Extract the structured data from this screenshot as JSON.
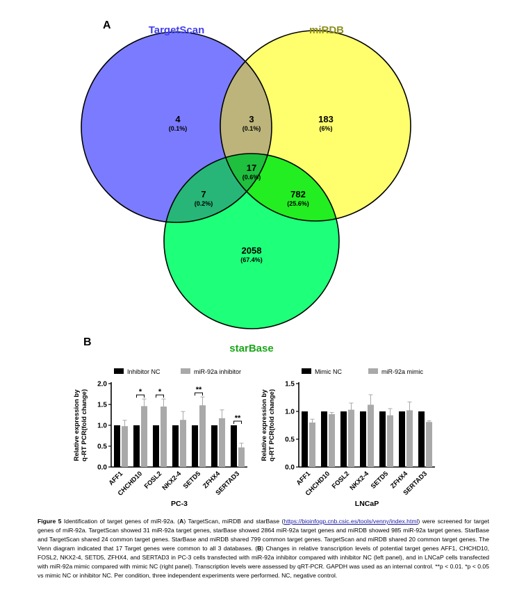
{
  "panel_a": {
    "label": "A",
    "sets": [
      {
        "name": "TargetScan",
        "color": "#4040f0",
        "fill": "#7b7bff"
      },
      {
        "name": "miRDB",
        "color": "#8f8f1e",
        "fill": "#ffff6e"
      },
      {
        "name": "starBase",
        "color": "#1aa61a",
        "fill": "#1eff7a"
      }
    ],
    "regions": [
      {
        "id": "ts_only",
        "count": "4",
        "pct": "(0.1%)"
      },
      {
        "id": "ts_mirdb",
        "count": "3",
        "pct": "(0.1%)"
      },
      {
        "id": "mirdb_only",
        "count": "183",
        "pct": "(6%)"
      },
      {
        "id": "all",
        "count": "17",
        "pct": "(0.6%)"
      },
      {
        "id": "ts_sb",
        "count": "7",
        "pct": "(0.2%)"
      },
      {
        "id": "mirdb_sb",
        "count": "782",
        "pct": "(25.6%)"
      },
      {
        "id": "sb_only",
        "count": "2058",
        "pct": "(67.4%)"
      }
    ]
  },
  "panel_b": {
    "label": "B",
    "chart_data": [
      {
        "type": "bar",
        "xlabel": "PC-3",
        "ylabel": [
          "Relative expression by",
          "q-RT PCR(fold change)"
        ],
        "ylim": [
          0,
          2.0
        ],
        "yticks": [
          "0.0",
          "0.5",
          "1.0",
          "1.5",
          "2.0"
        ],
        "categories": [
          "AFF1",
          "CHCHD10",
          "FOSL2",
          "NKX2-4",
          "SETD5",
          "ZFHX4",
          "SERTAD3"
        ],
        "series": [
          {
            "name": "Inhibitor NC",
            "color": "#000000",
            "values": [
              1.0,
              1.0,
              1.0,
              1.0,
              1.0,
              1.0,
              1.0
            ],
            "errors": [
              0,
              0,
              0,
              0,
              0,
              0,
              0
            ]
          },
          {
            "name": "miR-92a inhibitor",
            "color": "#a9a9a9",
            "values": [
              0.98,
              1.46,
              1.45,
              1.13,
              1.48,
              1.17,
              0.47
            ],
            "errors": [
              0.14,
              0.17,
              0.18,
              0.2,
              0.2,
              0.2,
              0.1
            ]
          }
        ],
        "significance": [
          {
            "category": "CHCHD10",
            "label": "*"
          },
          {
            "category": "FOSL2",
            "label": "*"
          },
          {
            "category": "SETD5",
            "label": "**"
          },
          {
            "category": "SERTAD3",
            "label": "**"
          }
        ],
        "legend": "top"
      },
      {
        "type": "bar",
        "xlabel": "LNCaP",
        "ylabel": [
          "Relative expression by",
          "q-RT PCR(fold change)"
        ],
        "ylim": [
          0,
          1.5
        ],
        "yticks": [
          "0.0",
          "0.5",
          "1.0",
          "1.5"
        ],
        "categories": [
          "AFF1",
          "CHCHD10",
          "FOSL2",
          "NKX2-4",
          "SETD5",
          "ZFHX4",
          "SERTAD3"
        ],
        "series": [
          {
            "name": "Mimic NC",
            "color": "#000000",
            "values": [
              1.0,
              1.0,
              1.0,
              1.0,
              1.0,
              1.0,
              1.0
            ],
            "errors": [
              0,
              0,
              0,
              0,
              0,
              0,
              0
            ]
          },
          {
            "name": "miR-92a mimic",
            "color": "#a9a9a9",
            "values": [
              0.8,
              0.95,
              1.03,
              1.12,
              0.93,
              1.02,
              0.81
            ],
            "errors": [
              0.06,
              0.03,
              0.12,
              0.18,
              0.12,
              0.15,
              0.02
            ]
          }
        ],
        "significance": [],
        "legend": "top"
      }
    ]
  },
  "caption": {
    "title": "Figure 5",
    "t1": " Identification of target genes of miR-92a. (",
    "a": "A",
    "t2": ") TargetScan, miRDB and starBase (",
    "link": "https://bioinfogp.cnb.csic.es/tools/venny/index.html",
    "t3": ") were screened for target genes of miR-92a. TargetScan showed 31 miR-92a target genes, starBase showed 2864 miR-92a target genes and miRDB showed 985 miR-92a target genes. StarBase and TargetScan shared 24 common target genes. StarBase and miRDB shared 799 common target genes. TargetScan and miRDB shared 20 common target genes. The Venn diagram indicated that 17 Target genes were common to all 3 databases. (",
    "b": "B",
    "t4": ") Changes in relative transcription levels of potential target genes AFF1, CHCHD10, FOSL2, NKX2-4, SETD5, ZFHX4, and SERTAD3 in PC-3 cells transfected with miR-92a inhibitor compared with inhibitor NC (left panel), and in LNCaP cells transfected with miR-92a mimic compared with mimic NC (right panel). Transcription levels were assessed by qRT-PCR. GAPDH was used as an internal control. **p < 0.01. *p < 0.05 vs mimic NC or inhibitor NC. Per condition, three independent experiments were performed. NC, negative control."
  }
}
